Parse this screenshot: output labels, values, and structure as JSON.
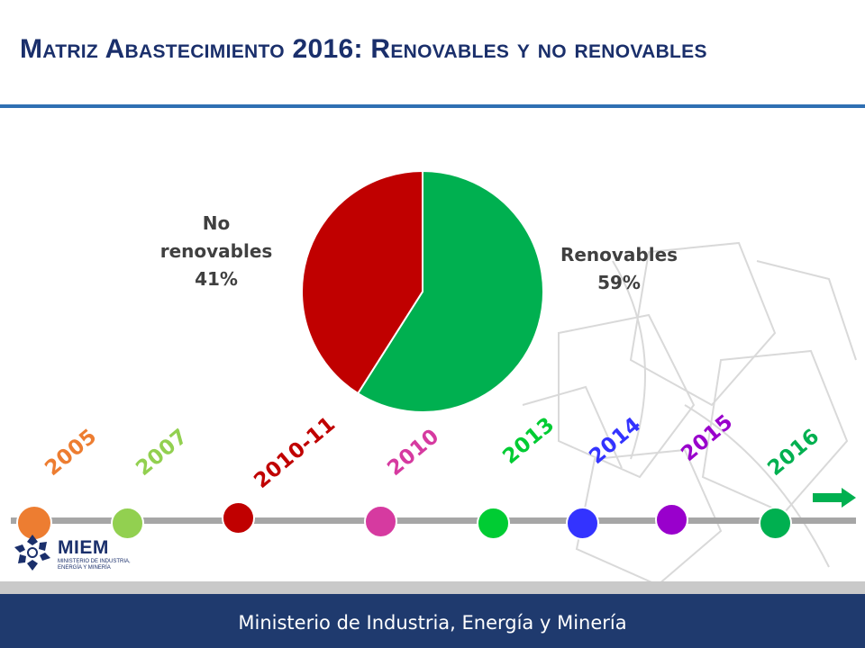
{
  "header": {
    "title": "Matriz Abastecimiento 2016: Renovables y no renovables"
  },
  "chart_data": {
    "type": "pie",
    "slices": [
      {
        "label_line1": "Renovables",
        "label_line2": "59%",
        "value": 59,
        "color": "#00b050"
      },
      {
        "label_line1": "No",
        "label_line1b": "renovables",
        "label_line2": "41%",
        "value": 41,
        "color": "#c00000"
      }
    ]
  },
  "timeline": {
    "years": [
      {
        "label": "2005",
        "color": "#ed7d31"
      },
      {
        "label": "2007",
        "color": "#92d050"
      },
      {
        "label": "2010-11",
        "color": "#c00000"
      },
      {
        "label": "2010",
        "color": "#d63aa0"
      },
      {
        "label": "2013",
        "color": "#00cc33"
      },
      {
        "label": "2014",
        "color": "#3333ff"
      },
      {
        "label": "2015",
        "color": "#9900cc"
      },
      {
        "label": "2016",
        "color": "#00b050"
      }
    ],
    "arrow_color": "#00b050",
    "bar_color": "#a6a6a6"
  },
  "logo": {
    "name": "MIEM",
    "subtitle": "Ministerio de Industria, Energía y Minería"
  },
  "footer": {
    "text": "Ministerio de Industria, Energía y Minería"
  }
}
